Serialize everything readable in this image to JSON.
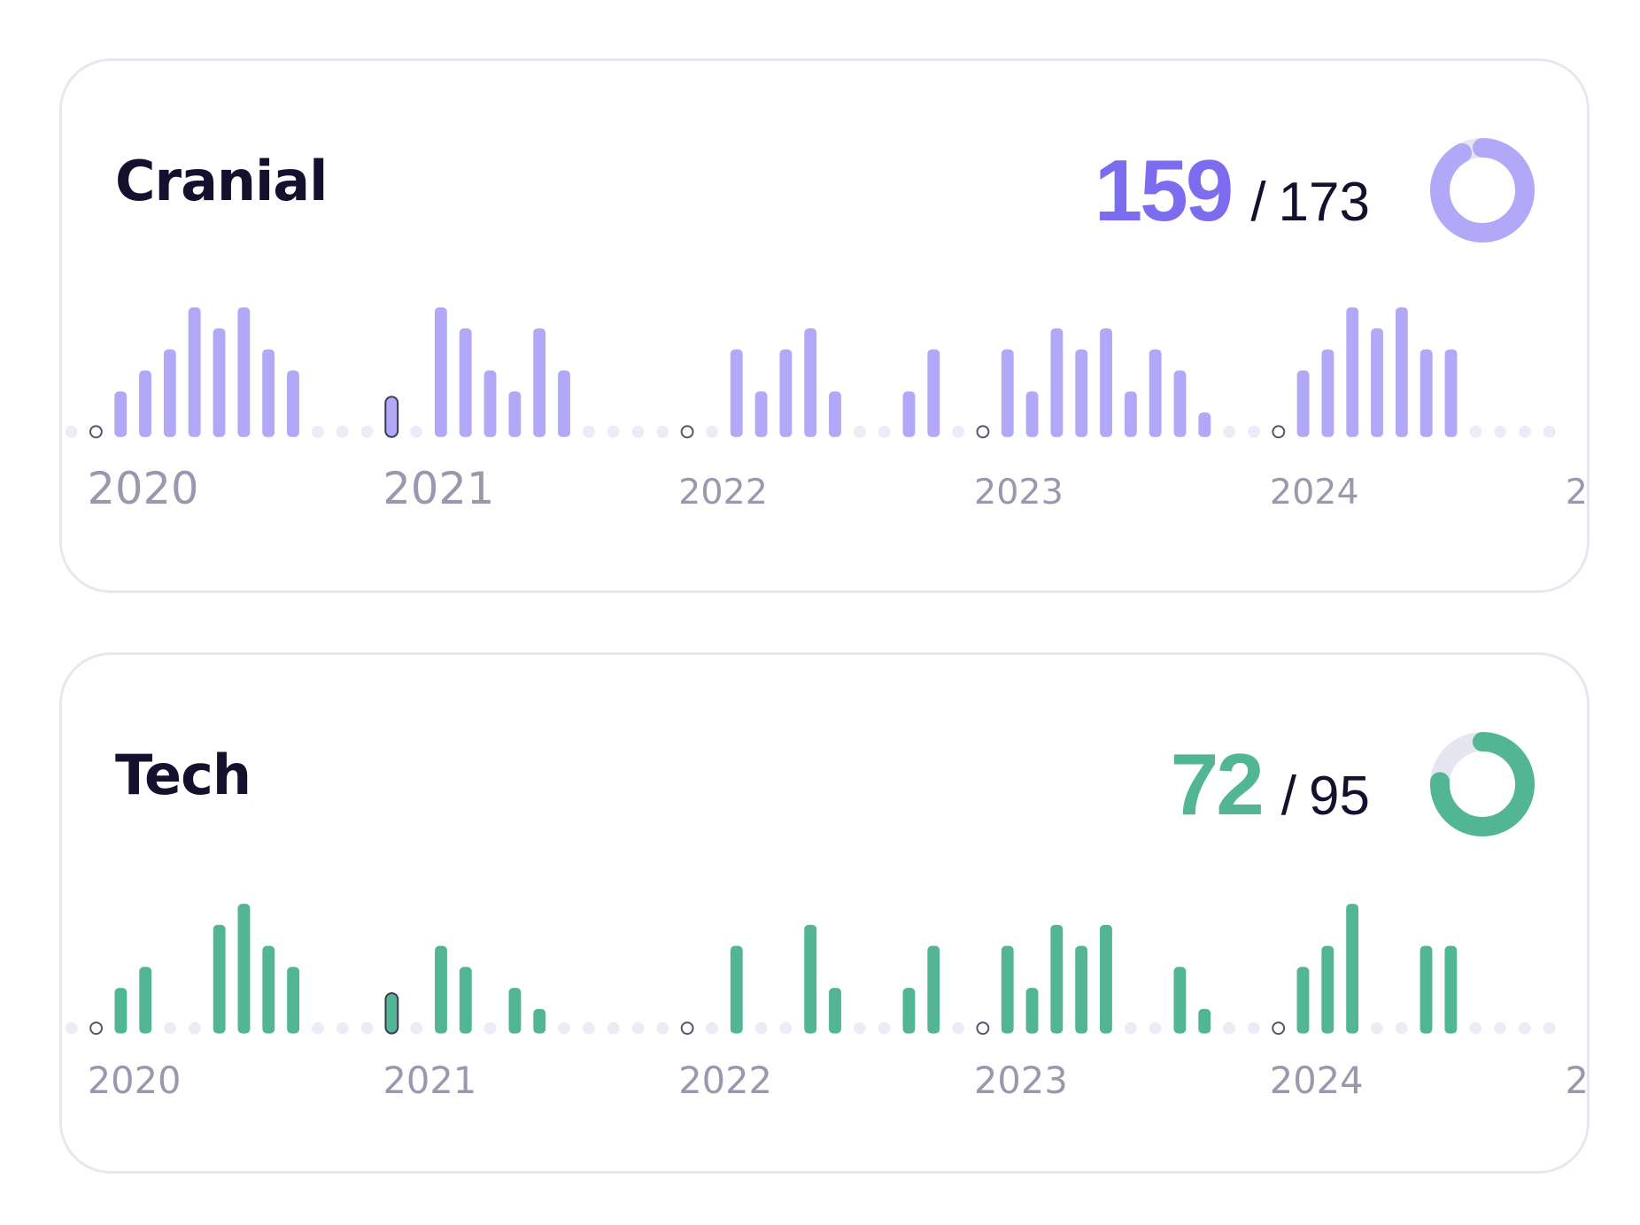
{
  "cards": [
    {
      "title": "Cranial",
      "score": "159",
      "separator": "/",
      "total": "173",
      "accent": "#7b6cf0",
      "bar_color": "#b1a9f7",
      "ring_color": "#b1a9f7",
      "ring_track": "#e6e6f2",
      "chart_data": {
        "type": "bar",
        "x_axis": "monthly",
        "year_labels": [
          "2020",
          "2021",
          "2022",
          "2023",
          "2024",
          "2"
        ],
        "values": [
          0,
          0,
          2,
          3,
          4,
          6,
          5,
          6,
          4,
          3,
          0,
          0,
          0,
          4,
          0,
          6,
          5,
          3,
          2,
          5,
          3,
          0,
          0,
          0,
          0,
          0,
          0,
          4,
          2,
          4,
          5,
          2,
          0,
          0,
          2,
          4,
          0,
          0,
          4,
          2,
          5,
          4,
          5,
          2,
          4,
          3,
          1,
          0,
          0,
          2,
          3,
          4,
          6,
          5,
          6,
          4,
          4,
          0,
          0,
          0,
          0
        ],
        "year_markers": [
          {
            "index": 1,
            "type": "dot"
          },
          {
            "index": 13,
            "type": "pill"
          },
          {
            "index": 25,
            "type": "dot"
          },
          {
            "index": 37,
            "type": "dot"
          },
          {
            "index": 49,
            "type": "dot"
          },
          {
            "index": 61,
            "type": "pill"
          }
        ]
      }
    },
    {
      "title": "Tech",
      "score": "72",
      "separator": "/",
      "total": "95",
      "accent": "#52b594",
      "bar_color": "#52b594",
      "ring_color": "#52b594",
      "ring_track": "#e6e6f2",
      "chart_data": {
        "type": "bar",
        "x_axis": "monthly",
        "year_labels": [
          "2020",
          "2021",
          "2022",
          "2023",
          "2024",
          "2"
        ],
        "values": [
          0,
          0,
          2,
          3,
          0,
          0,
          5,
          6,
          4,
          3,
          0,
          0,
          0,
          4,
          0,
          4,
          3,
          0,
          2,
          1,
          0,
          0,
          0,
          0,
          0,
          0,
          0,
          4,
          0,
          0,
          5,
          2,
          0,
          0,
          2,
          4,
          0,
          0,
          4,
          2,
          5,
          4,
          5,
          0,
          0,
          3,
          1,
          0,
          0,
          2,
          3,
          4,
          6,
          0,
          0,
          4,
          4,
          0,
          0,
          0,
          0
        ],
        "year_markers": [
          {
            "index": 1,
            "type": "dot"
          },
          {
            "index": 13,
            "type": "pill"
          },
          {
            "index": 25,
            "type": "dot"
          },
          {
            "index": 37,
            "type": "dot"
          },
          {
            "index": 49,
            "type": "dot"
          },
          {
            "index": 61,
            "type": "dot"
          }
        ]
      }
    }
  ]
}
